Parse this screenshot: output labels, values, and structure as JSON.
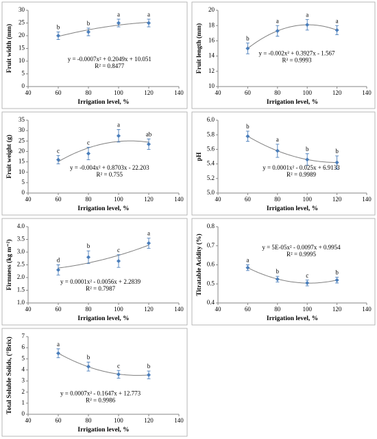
{
  "chart_data": [
    {
      "type": "scatter",
      "y_label": "Fruit width (mm)",
      "x_label": "Irrigation level, %",
      "x": [
        60,
        80,
        100,
        120
      ],
      "values": [
        20,
        21.5,
        25,
        25
      ],
      "errors": [
        1.5,
        1.5,
        1.5,
        1.5
      ],
      "letters": [
        "b",
        "b",
        "a",
        "a"
      ],
      "equation": "y = -0.0007x² + 0.2049x + 10.051",
      "r_squared": "R² = 0.8477",
      "xlim": [
        40,
        140
      ],
      "xticks": [
        40,
        60,
        80,
        100,
        120,
        140
      ],
      "ylim": [
        0,
        30
      ],
      "yticks": [
        0,
        5,
        10,
        15,
        20,
        25,
        30
      ],
      "color": "#4a7ebb",
      "trendline_color": "#7f7f7f"
    },
    {
      "type": "scatter",
      "y_label": "Fruit length (mm)",
      "x_label": "Irrigation level, %",
      "x": [
        60,
        80,
        100,
        120
      ],
      "values": [
        15,
        17.3,
        18.1,
        17.4
      ],
      "errors": [
        0.7,
        0.7,
        0.7,
        0.6
      ],
      "letters": [
        "b",
        "a",
        "a",
        "a"
      ],
      "equation": "y = -0.002x² + 0.3927x - 1.567",
      "r_squared": "R² = 0.9993",
      "xlim": [
        40,
        140
      ],
      "xticks": [
        40,
        60,
        80,
        100,
        120,
        140
      ],
      "ylim": [
        10,
        20
      ],
      "yticks": [
        10,
        12,
        14,
        16,
        18,
        20
      ],
      "color": "#4a7ebb",
      "trendline_color": "#7f7f7f"
    },
    {
      "type": "scatter",
      "y_label": "Fruit weight (g)",
      "x_label": "Irrigation level, %",
      "x": [
        60,
        80,
        100,
        120
      ],
      "values": [
        16,
        19,
        27.5,
        23.5
      ],
      "errors": [
        2,
        3,
        3,
        2.5
      ],
      "letters": [
        "c",
        "c",
        "a",
        "ab"
      ],
      "equation": "y = -0.004x² + 0.8703x - 22.203",
      "r_squared": "R² = 0.755",
      "xlim": [
        40,
        140
      ],
      "xticks": [
        40,
        60,
        80,
        100,
        120,
        140
      ],
      "ylim": [
        0,
        35
      ],
      "yticks": [
        0,
        5,
        10,
        15,
        20,
        25,
        30,
        35
      ],
      "color": "#4a7ebb",
      "trendline_color": "#7f7f7f"
    },
    {
      "type": "scatter",
      "y_label": "pH",
      "x_label": "Irrigation level, %",
      "x": [
        60,
        80,
        100,
        120
      ],
      "values": [
        5.78,
        5.58,
        5.46,
        5.42
      ],
      "errors": [
        0.07,
        0.09,
        0.08,
        0.09
      ],
      "letters": [
        "b",
        "a",
        "b",
        "b"
      ],
      "equation": "y = 0.0001x² - 0.025x + 6.9133",
      "r_squared": "R² = 0.9989",
      "xlim": [
        40,
        140
      ],
      "xticks": [
        40,
        60,
        80,
        100,
        120,
        140
      ],
      "ylim": [
        5,
        6
      ],
      "yticks": [
        {
          "value": 5,
          "label": "5.0"
        },
        5.2,
        5.4,
        5.6,
        5.8,
        {
          "value": 6,
          "label": "6.0"
        }
      ],
      "color": "#4a7ebb",
      "trendline_color": "#7f7f7f"
    },
    {
      "type": "scatter",
      "y_label": "Firmness (kg m⁻²)",
      "x_label": "Irrigation level, %",
      "x": [
        60,
        80,
        100,
        120
      ],
      "values": [
        2.3,
        2.8,
        2.65,
        3.35
      ],
      "errors": [
        0.2,
        0.25,
        0.25,
        0.2
      ],
      "letters": [
        "d",
        "b",
        "c",
        "a"
      ],
      "equation": "y = 0.0001x² - 0.0056x + 2.2839",
      "r_squared": "R² = 0.7987",
      "xlim": [
        40,
        140
      ],
      "xticks": [
        40,
        60,
        80,
        100,
        120,
        140
      ],
      "ylim": [
        1,
        4
      ],
      "yticks": [
        {
          "value": 1,
          "label": "1.0"
        },
        1.5,
        {
          "value": 2,
          "label": "2.0"
        },
        2.5,
        {
          "value": 3,
          "label": "3.0"
        },
        3.5,
        {
          "value": 4,
          "label": "4.0"
        }
      ],
      "color": "#4a7ebb",
      "trendline_color": "#7f7f7f"
    },
    {
      "type": "scatter",
      "y_label": "Titratable Acidity (%)",
      "x_label": "Irrigation level, %",
      "x": [
        60,
        80,
        100,
        120
      ],
      "values": [
        0.585,
        0.525,
        0.505,
        0.52
      ],
      "errors": [
        0.015,
        0.015,
        0.015,
        0.015
      ],
      "letters": [
        "a",
        "b",
        "c",
        "b"
      ],
      "equation": "y = 5E-05x² - 0.0097x + 0.9954",
      "r_squared": "R² = 0.9995",
      "xlim": [
        40,
        140
      ],
      "xticks": [
        40,
        60,
        80,
        100,
        120,
        140
      ],
      "ylim": [
        0.4,
        0.8
      ],
      "yticks": [
        0.4,
        0.5,
        0.6,
        0.7,
        0.8
      ],
      "color": "#4a7ebb",
      "trendline_color": "#7f7f7f"
    },
    {
      "type": "scatter",
      "y_label": "Total Soluble Solids, (°Brix)",
      "x_label": "Irrigation level, %",
      "x": [
        60,
        80,
        100,
        120
      ],
      "values": [
        5.5,
        4.3,
        3.6,
        3.55
      ],
      "errors": [
        0.4,
        0.4,
        0.35,
        0.35
      ],
      "letters": [
        "a",
        "b",
        "c",
        "b"
      ],
      "equation": "y = 0.0007x² - 0.1647x + 12.773",
      "r_squared": "R² = 0.9986",
      "xlim": [
        40,
        140
      ],
      "xticks": [
        40,
        60,
        80,
        100,
        120,
        140
      ],
      "ylim": [
        0,
        7
      ],
      "yticks": [
        0,
        1,
        2,
        3,
        4,
        5,
        6,
        7
      ],
      "color": "#4a7ebb",
      "trendline_color": "#7f7f7f"
    }
  ]
}
